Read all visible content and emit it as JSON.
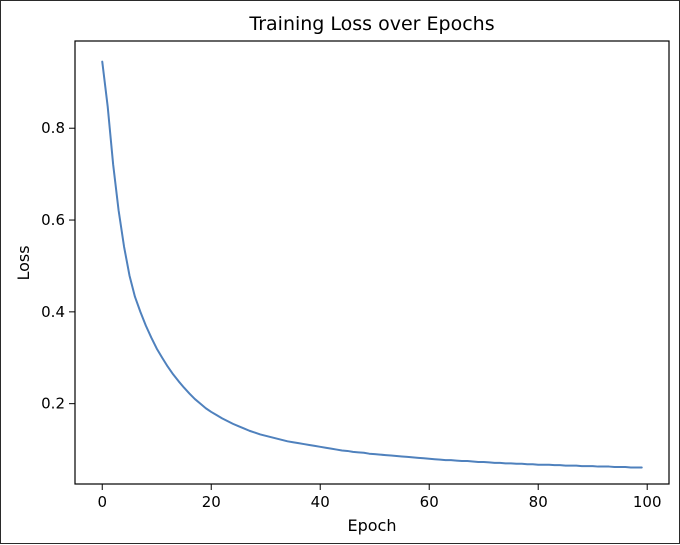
{
  "chart_data": {
    "type": "line",
    "title": "Training Loss over Epochs",
    "xlabel": "Epoch",
    "ylabel": "Loss",
    "xlim": [
      -5,
      104
    ],
    "ylim": [
      0.025,
      0.99
    ],
    "xticks": [
      0,
      20,
      40,
      60,
      80,
      100
    ],
    "yticks": [
      0.2,
      0.4,
      0.6,
      0.8
    ],
    "xtick_labels": [
      "0",
      "20",
      "40",
      "60",
      "80",
      "100"
    ],
    "ytick_labels": [
      "0.2",
      "0.4",
      "0.6",
      "0.8"
    ],
    "grid": false,
    "legend": "none",
    "series": [
      {
        "color": "#4f81bd",
        "x": [
          0,
          1,
          2,
          3,
          4,
          5,
          6,
          7,
          8,
          9,
          10,
          11,
          12,
          13,
          14,
          15,
          16,
          17,
          18,
          19,
          20,
          21,
          22,
          23,
          24,
          25,
          26,
          27,
          28,
          29,
          30,
          31,
          32,
          33,
          34,
          35,
          36,
          37,
          38,
          39,
          40,
          41,
          42,
          43,
          44,
          45,
          46,
          47,
          48,
          49,
          50,
          51,
          52,
          53,
          54,
          55,
          56,
          57,
          58,
          59,
          60,
          61,
          62,
          63,
          64,
          65,
          66,
          67,
          68,
          69,
          70,
          71,
          72,
          73,
          74,
          75,
          76,
          77,
          78,
          79,
          80,
          81,
          82,
          83,
          84,
          85,
          86,
          87,
          88,
          89,
          90,
          91,
          92,
          93,
          94,
          95,
          96,
          97,
          98,
          99
        ],
        "y": [
          0.945,
          0.847,
          0.721,
          0.621,
          0.542,
          0.479,
          0.433,
          0.4,
          0.37,
          0.344,
          0.32,
          0.3,
          0.281,
          0.264,
          0.249,
          0.235,
          0.222,
          0.21,
          0.2,
          0.19,
          0.182,
          0.175,
          0.168,
          0.162,
          0.156,
          0.151,
          0.146,
          0.141,
          0.137,
          0.133,
          0.13,
          0.127,
          0.124,
          0.121,
          0.118,
          0.116,
          0.114,
          0.112,
          0.11,
          0.108,
          0.106,
          0.104,
          0.102,
          0.1,
          0.098,
          0.097,
          0.095,
          0.094,
          0.093,
          0.091,
          0.09,
          0.089,
          0.088,
          0.087,
          0.086,
          0.085,
          0.084,
          0.083,
          0.082,
          0.081,
          0.08,
          0.079,
          0.078,
          0.077,
          0.077,
          0.076,
          0.075,
          0.075,
          0.074,
          0.073,
          0.073,
          0.072,
          0.071,
          0.071,
          0.07,
          0.07,
          0.069,
          0.069,
          0.068,
          0.068,
          0.067,
          0.067,
          0.067,
          0.066,
          0.066,
          0.065,
          0.065,
          0.065,
          0.064,
          0.064,
          0.064,
          0.063,
          0.063,
          0.063,
          0.062,
          0.062,
          0.062,
          0.061,
          0.061,
          0.061
        ]
      }
    ]
  }
}
